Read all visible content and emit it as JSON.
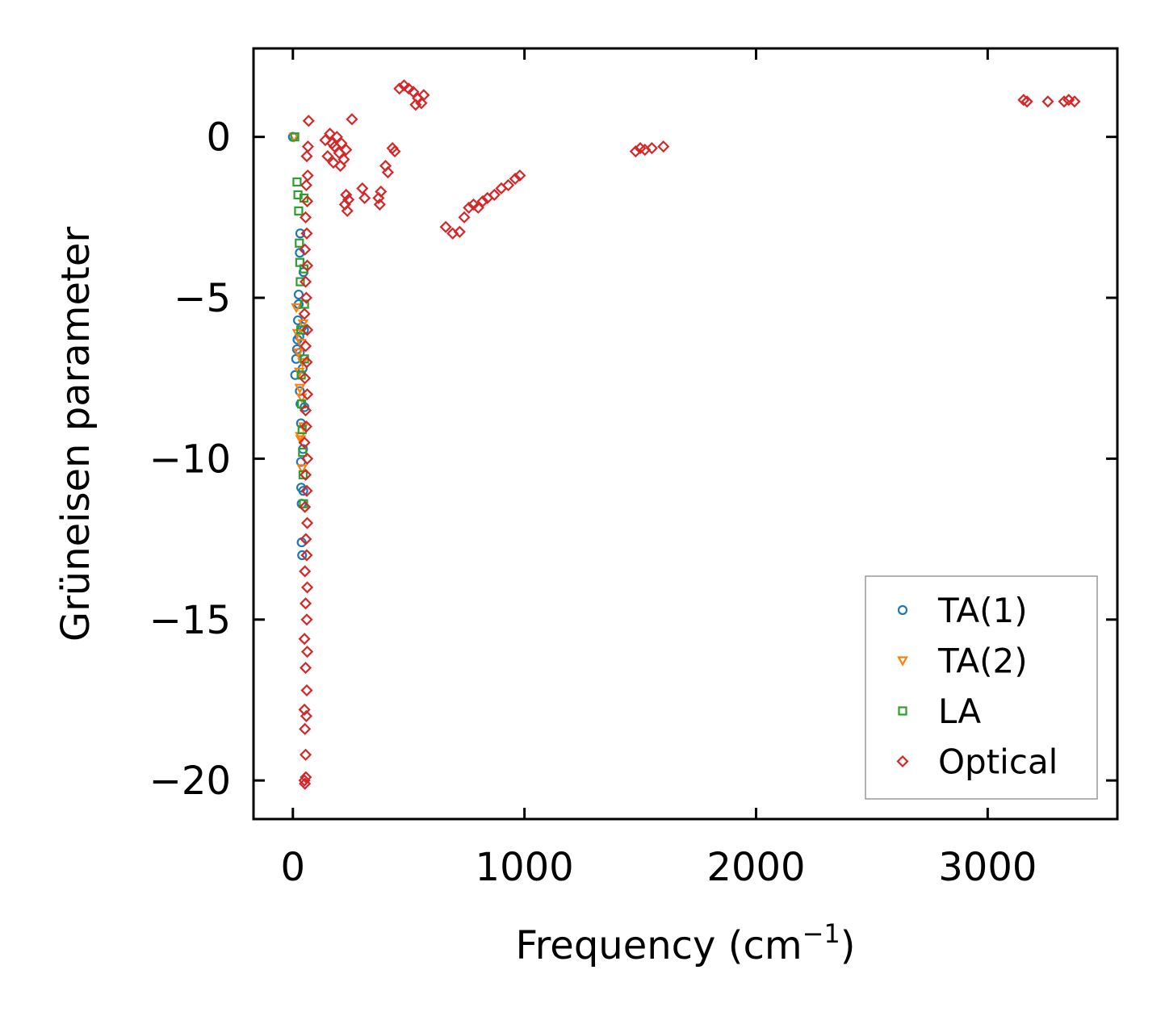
{
  "chart_data": {
    "type": "scatter",
    "title": "",
    "xlabel_main": "Frequency (cm",
    "xlabel_sup": "−1",
    "xlabel_close": ")",
    "ylabel": "Grüneisen parameter",
    "xlim": [
      -170,
      3560
    ],
    "ylim": [
      -21.2,
      2.75
    ],
    "xticks": [
      0,
      1000,
      2000,
      3000
    ],
    "xtick_labels": [
      "0",
      "1000",
      "2000",
      "3000"
    ],
    "yticks": [
      0,
      -5,
      -10,
      -15,
      -20
    ],
    "ytick_labels": [
      "0",
      "−5",
      "−10",
      "−15",
      "−20"
    ],
    "grid": false,
    "legend_position": "lower-right",
    "series": [
      {
        "name": "TA(1)",
        "marker": "circle",
        "color": "#1f77b4",
        "points": [
          [
            0,
            0
          ],
          [
            10,
            -7.4
          ],
          [
            14,
            -6.9
          ],
          [
            18,
            -6.6
          ],
          [
            20,
            -6.3
          ],
          [
            22,
            -5.7
          ],
          [
            25,
            -5.2
          ],
          [
            25,
            -4.9
          ],
          [
            28,
            -6.2
          ],
          [
            30,
            -6.7
          ],
          [
            30,
            -7.9
          ],
          [
            30,
            -3.6
          ],
          [
            32,
            -3.0
          ],
          [
            33,
            -8.3
          ],
          [
            35,
            -8.9
          ],
          [
            35,
            -10.1
          ],
          [
            36,
            -10.9
          ],
          [
            38,
            -11.4
          ],
          [
            38,
            -12.6
          ],
          [
            40,
            -13.0
          ],
          [
            40,
            -5.9
          ],
          [
            42,
            -7.2
          ],
          [
            44,
            -9.7
          ],
          [
            45,
            -11.0
          ],
          [
            46,
            -4.2
          ],
          [
            48,
            -6.0
          ],
          [
            50,
            -8.4
          ]
        ]
      },
      {
        "name": "TA(2)",
        "marker": "triangle-down",
        "color": "#ff7f0e",
        "points": [
          [
            5,
            0
          ],
          [
            15,
            -5.3
          ],
          [
            20,
            -6.1
          ],
          [
            24,
            -6.7
          ],
          [
            28,
            -7.3
          ],
          [
            30,
            -7.8
          ],
          [
            32,
            -9.3
          ],
          [
            34,
            -9.4
          ],
          [
            35,
            -6.4
          ],
          [
            38,
            -8.1
          ],
          [
            40,
            -10.3
          ],
          [
            42,
            -7.0
          ],
          [
            44,
            -5.8
          ],
          [
            46,
            -9.0
          ]
        ]
      },
      {
        "name": "LA",
        "marker": "square",
        "color": "#2ca02c",
        "points": [
          [
            8,
            0
          ],
          [
            18,
            -1.4
          ],
          [
            22,
            -1.8
          ],
          [
            25,
            -2.3
          ],
          [
            28,
            -3.3
          ],
          [
            30,
            -3.9
          ],
          [
            32,
            -4.5
          ],
          [
            34,
            -6.0
          ],
          [
            36,
            -7.4
          ],
          [
            38,
            -8.3
          ],
          [
            40,
            -9.1
          ],
          [
            42,
            -9.8
          ],
          [
            44,
            -10.5
          ],
          [
            46,
            -11.4
          ],
          [
            48,
            -1.9
          ],
          [
            48,
            -4.1
          ],
          [
            50,
            -5.2
          ],
          [
            50,
            -6.9
          ]
        ]
      },
      {
        "name": "Optical",
        "marker": "diamond",
        "color": "#d62728",
        "points": [
          [
            55,
            -19.2
          ],
          [
            50,
            -20.0
          ],
          [
            52,
            -20.1
          ],
          [
            56,
            -19.9
          ],
          [
            52,
            -18.4
          ],
          [
            58,
            -18.0
          ],
          [
            50,
            -17.8
          ],
          [
            60,
            -17.2
          ],
          [
            55,
            -16.5
          ],
          [
            62,
            -16.0
          ],
          [
            50,
            -15.6
          ],
          [
            60,
            -15.0
          ],
          [
            55,
            -14.5
          ],
          [
            62,
            -14.0
          ],
          [
            52,
            -13.5
          ],
          [
            60,
            -13.0
          ],
          [
            56,
            -12.5
          ],
          [
            62,
            -12.0
          ],
          [
            52,
            -11.5
          ],
          [
            60,
            -11.0
          ],
          [
            55,
            -10.5
          ],
          [
            62,
            -10.0
          ],
          [
            50,
            -9.5
          ],
          [
            58,
            -9.0
          ],
          [
            55,
            -8.5
          ],
          [
            62,
            -8.0
          ],
          [
            52,
            -7.5
          ],
          [
            60,
            -7.0
          ],
          [
            55,
            -6.5
          ],
          [
            62,
            -6.0
          ],
          [
            50,
            -5.5
          ],
          [
            58,
            -5.0
          ],
          [
            55,
            -4.5
          ],
          [
            62,
            -4.0
          ],
          [
            52,
            -3.5
          ],
          [
            60,
            -3.0
          ],
          [
            55,
            -2.5
          ],
          [
            62,
            -2.0
          ],
          [
            58,
            -1.5
          ],
          [
            64,
            -1.2
          ],
          [
            60,
            -0.6
          ],
          [
            65,
            -0.3
          ],
          [
            68,
            0.5
          ],
          [
            140,
            -0.1
          ],
          [
            160,
            0.1
          ],
          [
            180,
            -0.3
          ],
          [
            200,
            -0.5
          ],
          [
            220,
            -0.7
          ],
          [
            150,
            -0.6
          ],
          [
            170,
            -0.2
          ],
          [
            190,
            0.0
          ],
          [
            210,
            -0.2
          ],
          [
            230,
            -0.4
          ],
          [
            175,
            -0.8
          ],
          [
            205,
            -0.9
          ],
          [
            255,
            0.55
          ],
          [
            230,
            -1.8
          ],
          [
            225,
            -2.1
          ],
          [
            235,
            -2.3
          ],
          [
            240,
            -1.95
          ],
          [
            300,
            -1.6
          ],
          [
            310,
            -1.9
          ],
          [
            370,
            -1.9
          ],
          [
            375,
            -2.1
          ],
          [
            380,
            -1.7
          ],
          [
            400,
            -0.9
          ],
          [
            410,
            -1.1
          ],
          [
            430,
            -0.35
          ],
          [
            440,
            -0.45
          ],
          [
            460,
            1.5
          ],
          [
            480,
            1.6
          ],
          [
            500,
            1.5
          ],
          [
            520,
            1.4
          ],
          [
            540,
            1.2
          ],
          [
            555,
            1.05
          ],
          [
            565,
            1.3
          ],
          [
            530,
            1.0
          ],
          [
            660,
            -2.8
          ],
          [
            690,
            -3.0
          ],
          [
            720,
            -2.95
          ],
          [
            740,
            -2.5
          ],
          [
            760,
            -2.2
          ],
          [
            780,
            -2.1
          ],
          [
            800,
            -2.2
          ],
          [
            820,
            -2.0
          ],
          [
            840,
            -1.9
          ],
          [
            870,
            -1.8
          ],
          [
            900,
            -1.6
          ],
          [
            930,
            -1.5
          ],
          [
            960,
            -1.3
          ],
          [
            980,
            -1.2
          ],
          [
            1480,
            -0.45
          ],
          [
            1500,
            -0.35
          ],
          [
            1520,
            -0.4
          ],
          [
            1550,
            -0.35
          ],
          [
            1600,
            -0.3
          ],
          [
            3155,
            1.15
          ],
          [
            3170,
            1.1
          ],
          [
            3260,
            1.1
          ],
          [
            3330,
            1.1
          ],
          [
            3350,
            1.15
          ],
          [
            3375,
            1.1
          ]
        ]
      }
    ]
  }
}
